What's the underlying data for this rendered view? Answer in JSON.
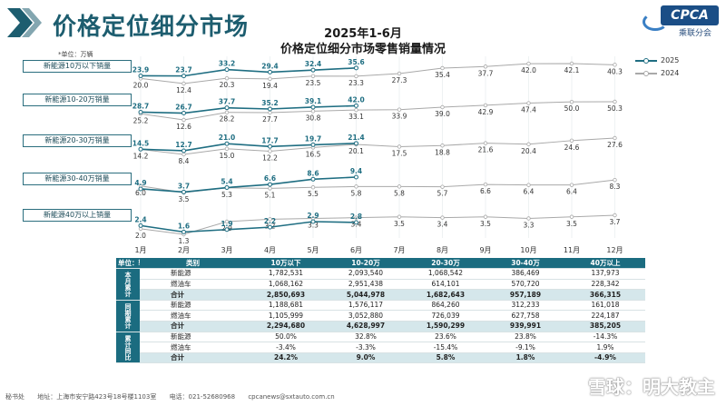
{
  "page_title": "价格定位细分市场",
  "logo": {
    "main": "CPCA",
    "sub": "乘联分会"
  },
  "unit_label": "*单位：万辆",
  "chart_data": {
    "type": "line",
    "title_line1": "2025年1-6月",
    "title_line2": "价格定位细分市场零售销量情况",
    "x": [
      "1月",
      "2月",
      "3月",
      "4月",
      "5月",
      "6月",
      "7月",
      "8月",
      "9月",
      "10月",
      "11月",
      "12月"
    ],
    "legend": [
      "2025",
      "2024"
    ],
    "colors": {
      "s2025": "#1f6e82",
      "s2024": "#a9a9a9"
    },
    "panels": [
      {
        "label": "新能源10万以下销量",
        "y2025": [
          23.9,
          23.7,
          33.2,
          29.4,
          32.4,
          35.6
        ],
        "y2024": [
          20.0,
          12.4,
          20.3,
          19.4,
          23.5,
          23.3,
          27.3,
          35.4,
          37.7,
          42.0,
          42.1,
          40.3
        ]
      },
      {
        "label": "新能源10-20万销量",
        "y2025": [
          28.7,
          26.7,
          37.7,
          35.2,
          39.1,
          42.0
        ],
        "y2024": [
          25.2,
          12.6,
          28.2,
          27.7,
          30.8,
          33.1,
          33.9,
          39.0,
          42.9,
          47.4,
          50.0,
          50.3
        ]
      },
      {
        "label": "新能源20-30万销量",
        "y2025": [
          14.5,
          12.7,
          21.0,
          17.7,
          19.7,
          21.4
        ],
        "y2024": [
          14.2,
          8.4,
          15.0,
          12.2,
          16.5,
          20.1,
          17.5,
          18.8,
          21.6,
          20.4,
          24.6,
          27.6
        ]
      },
      {
        "label": "新能源30-40万销量",
        "y2025": [
          4.9,
          3.7,
          5.4,
          6.6,
          8.6,
          9.4
        ],
        "y2024": [
          6.0,
          3.5,
          5.3,
          5.1,
          5.5,
          5.8,
          5.8,
          5.7,
          6.6,
          6.4,
          6.4,
          8.3
        ]
      },
      {
        "label": "新能源40万以上销量",
        "y2025": [
          2.4,
          1.6,
          1.9,
          2.2,
          2.9,
          2.8
        ],
        "y2024": [
          2.0,
          1.3,
          2.9,
          3.2,
          3.3,
          3.4,
          3.5,
          3.4,
          3.5,
          3.3,
          3.5,
          3.7
        ]
      }
    ]
  },
  "table": {
    "unit": "单位：辆",
    "headers": [
      "类别",
      "10万以下",
      "10-20万",
      "20-30万",
      "30-40万",
      "40万以上"
    ],
    "groups": [
      {
        "name": "本月累计",
        "rows": [
          {
            "type": "新能源",
            "values": [
              "1,782,531",
              "2,093,540",
              "1,068,542",
              "386,469",
              "137,973"
            ]
          },
          {
            "type": "燃油车",
            "values": [
              "1,068,162",
              "2,951,438",
              "614,101",
              "570,720",
              "228,342"
            ]
          },
          {
            "type": "合计",
            "values": [
              "2,850,693",
              "5,044,978",
              "1,682,643",
              "957,189",
              "366,315"
            ]
          }
        ]
      },
      {
        "name": "同期累计",
        "rows": [
          {
            "type": "新能源",
            "values": [
              "1,188,681",
              "1,576,117",
              "864,260",
              "312,233",
              "161,018"
            ]
          },
          {
            "type": "燃油车",
            "values": [
              "1,105,999",
              "3,052,880",
              "726,039",
              "627,758",
              "224,187"
            ]
          },
          {
            "type": "合计",
            "values": [
              "2,294,680",
              "4,628,997",
              "1,590,299",
              "939,991",
              "385,205"
            ]
          }
        ]
      },
      {
        "name": "累计同比",
        "rows": [
          {
            "type": "新能源",
            "values": [
              "50.0%",
              "32.8%",
              "23.6%",
              "23.8%",
              "-14.3%"
            ]
          },
          {
            "type": "燃油车",
            "values": [
              "-3.4%",
              "-3.3%",
              "-15.4%",
              "-9.1%",
              "1.9%"
            ]
          },
          {
            "type": "合计",
            "values": [
              "24.2%",
              "9.0%",
              "5.8%",
              "1.8%",
              "-4.9%"
            ]
          }
        ]
      }
    ]
  },
  "footer": {
    "org": "秘书处",
    "address": "地址：上海市安宁路423号18号楼1103室",
    "phone": "电话：021-52680968",
    "email": "cpcanews@sxtauto.com.cn"
  },
  "watermark": "雪球：明大教主"
}
